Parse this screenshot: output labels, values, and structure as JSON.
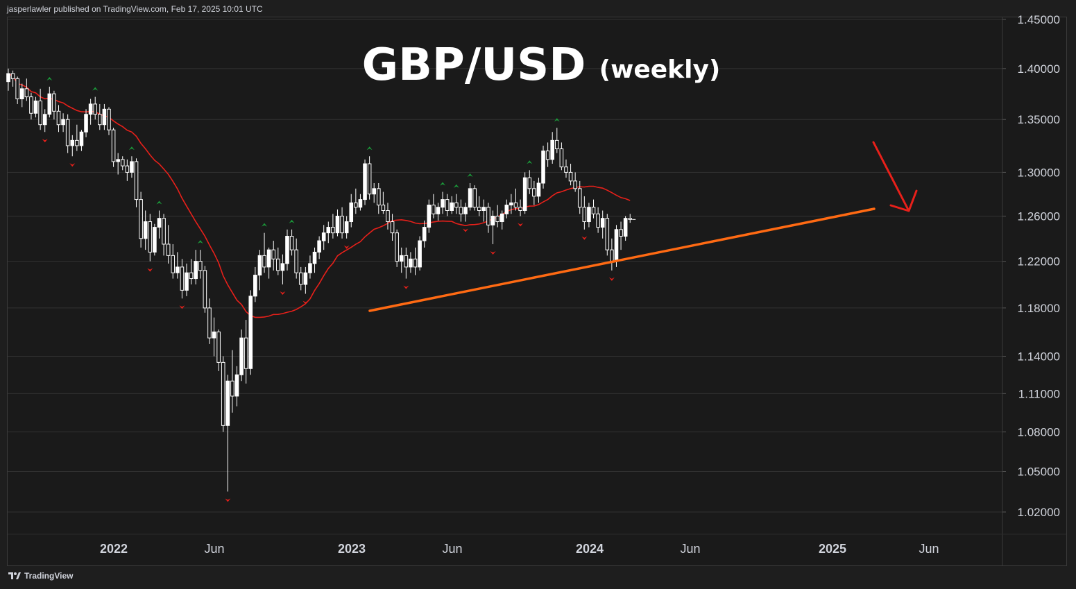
{
  "header": {
    "credit": "jasperlawler published on TradingView.com, Feb 17, 2025 10:01 UTC"
  },
  "footer": {
    "brand": "TradingView"
  },
  "annotation": {
    "title": "GBP/USD",
    "subtitle": "(weekly)",
    "trendline_color": "#ff6a13",
    "arrow_color": "#e8201a"
  },
  "colors": {
    "background": "#1a1a1a",
    "grid": "#333333",
    "candle_up": "#ffffff",
    "candle_down": "#ffffff",
    "moving_average": "#e8201a",
    "swing_high_marker": "#1a9c3a",
    "swing_low_marker": "#e8201a",
    "axis_text": "#d1d4dc"
  },
  "chart_data": {
    "type": "candlestick",
    "symbol": "GBP/USD",
    "timeframe": "weekly",
    "y_axis": {
      "ticks": [
        "1.45000",
        "1.40000",
        "1.35000",
        "1.30000",
        "1.26000",
        "1.22000",
        "1.18000",
        "1.14000",
        "1.11000",
        "1.08000",
        "1.05000",
        "1.02000"
      ],
      "range": [
        1.0,
        1.45
      ],
      "scale": "log"
    },
    "x_axis": {
      "ticks": [
        "2022",
        "Jun",
        "2023",
        "Jun",
        "2024",
        "Jun",
        "2025",
        "Jun"
      ]
    },
    "ohlc": [
      [
        1.387,
        1.4,
        1.378,
        1.395
      ],
      [
        1.395,
        1.398,
        1.382,
        1.39
      ],
      [
        1.39,
        1.392,
        1.365,
        1.37
      ],
      [
        1.37,
        1.385,
        1.362,
        1.38
      ],
      [
        1.38,
        1.39,
        1.368,
        1.372
      ],
      [
        1.372,
        1.376,
        1.35,
        1.356
      ],
      [
        1.356,
        1.372,
        1.352,
        1.368
      ],
      [
        1.368,
        1.38,
        1.34,
        1.345
      ],
      [
        1.345,
        1.36,
        1.338,
        1.355
      ],
      [
        1.355,
        1.382,
        1.352,
        1.375
      ],
      [
        1.375,
        1.378,
        1.35,
        1.358
      ],
      [
        1.358,
        1.364,
        1.338,
        1.345
      ],
      [
        1.345,
        1.356,
        1.338,
        1.35
      ],
      [
        1.35,
        1.355,
        1.318,
        1.325
      ],
      [
        1.325,
        1.335,
        1.315,
        1.33
      ],
      [
        1.33,
        1.345,
        1.32,
        1.325
      ],
      [
        1.325,
        1.34,
        1.32,
        1.338
      ],
      [
        1.338,
        1.36,
        1.333,
        1.355
      ],
      [
        1.355,
        1.37,
        1.345,
        1.365
      ],
      [
        1.365,
        1.372,
        1.35,
        1.355
      ],
      [
        1.355,
        1.365,
        1.34,
        1.345
      ],
      [
        1.345,
        1.365,
        1.34,
        1.36
      ],
      [
        1.36,
        1.362,
        1.335,
        1.34
      ],
      [
        1.34,
        1.342,
        1.305,
        1.31
      ],
      [
        1.31,
        1.318,
        1.298,
        1.312
      ],
      [
        1.312,
        1.315,
        1.302,
        1.306
      ],
      [
        1.306,
        1.312,
        1.292,
        1.3
      ],
      [
        1.3,
        1.315,
        1.295,
        1.31
      ],
      [
        1.31,
        1.313,
        1.268,
        1.275
      ],
      [
        1.275,
        1.282,
        1.232,
        1.24
      ],
      [
        1.24,
        1.265,
        1.23,
        1.255
      ],
      [
        1.255,
        1.262,
        1.22,
        1.228
      ],
      [
        1.228,
        1.253,
        1.225,
        1.25
      ],
      [
        1.25,
        1.265,
        1.24,
        1.258
      ],
      [
        1.258,
        1.262,
        1.225,
        1.235
      ],
      [
        1.235,
        1.252,
        1.218,
        1.225
      ],
      [
        1.225,
        1.235,
        1.205,
        1.21
      ],
      [
        1.21,
        1.228,
        1.205,
        1.215
      ],
      [
        1.215,
        1.222,
        1.188,
        1.195
      ],
      [
        1.195,
        1.218,
        1.19,
        1.21
      ],
      [
        1.21,
        1.222,
        1.2,
        1.205
      ],
      [
        1.205,
        1.23,
        1.2,
        1.22
      ],
      [
        1.22,
        1.23,
        1.205,
        1.212
      ],
      [
        1.212,
        1.216,
        1.176,
        1.18
      ],
      [
        1.18,
        1.188,
        1.15,
        1.155
      ],
      [
        1.155,
        1.172,
        1.14,
        1.16
      ],
      [
        1.16,
        1.162,
        1.128,
        1.135
      ],
      [
        1.135,
        1.14,
        1.08,
        1.085
      ],
      [
        1.085,
        1.125,
        1.035,
        1.12
      ],
      [
        1.12,
        1.145,
        1.095,
        1.108
      ],
      [
        1.108,
        1.132,
        1.1,
        1.125
      ],
      [
        1.125,
        1.162,
        1.12,
        1.155
      ],
      [
        1.155,
        1.17,
        1.118,
        1.13
      ],
      [
        1.13,
        1.195,
        1.125,
        1.19
      ],
      [
        1.19,
        1.215,
        1.185,
        1.208
      ],
      [
        1.208,
        1.23,
        1.195,
        1.225
      ],
      [
        1.225,
        1.245,
        1.21,
        1.215
      ],
      [
        1.215,
        1.232,
        1.205,
        1.23
      ],
      [
        1.23,
        1.238,
        1.212,
        1.222
      ],
      [
        1.222,
        1.232,
        1.208,
        1.212
      ],
      [
        1.212,
        1.226,
        1.2,
        1.218
      ],
      [
        1.218,
        1.248,
        1.212,
        1.242
      ],
      [
        1.242,
        1.248,
        1.225,
        1.23
      ],
      [
        1.23,
        1.24,
        1.205,
        1.21
      ],
      [
        1.21,
        1.215,
        1.195,
        1.2
      ],
      [
        1.2,
        1.215,
        1.192,
        1.21
      ],
      [
        1.21,
        1.225,
        1.205,
        1.218
      ],
      [
        1.218,
        1.232,
        1.21,
        1.228
      ],
      [
        1.228,
        1.242,
        1.222,
        1.238
      ],
      [
        1.238,
        1.252,
        1.23,
        1.245
      ],
      [
        1.245,
        1.255,
        1.236,
        1.25
      ],
      [
        1.25,
        1.262,
        1.24,
        1.245
      ],
      [
        1.245,
        1.266,
        1.242,
        1.26
      ],
      [
        1.26,
        1.268,
        1.24,
        1.245
      ],
      [
        1.245,
        1.26,
        1.24,
        1.255
      ],
      [
        1.255,
        1.28,
        1.25,
        1.272
      ],
      [
        1.272,
        1.285,
        1.262,
        1.268
      ],
      [
        1.268,
        1.28,
        1.265,
        1.275
      ],
      [
        1.275,
        1.312,
        1.27,
        1.308
      ],
      [
        1.308,
        1.315,
        1.275,
        1.28
      ],
      [
        1.28,
        1.29,
        1.272,
        1.285
      ],
      [
        1.285,
        1.29,
        1.262,
        1.27
      ],
      [
        1.27,
        1.282,
        1.262,
        1.265
      ],
      [
        1.265,
        1.272,
        1.248,
        1.255
      ],
      [
        1.255,
        1.262,
        1.238,
        1.245
      ],
      [
        1.245,
        1.248,
        1.215,
        1.22
      ],
      [
        1.22,
        1.232,
        1.21,
        1.225
      ],
      [
        1.225,
        1.232,
        1.205,
        1.215
      ],
      [
        1.215,
        1.228,
        1.21,
        1.222
      ],
      [
        1.222,
        1.232,
        1.208,
        1.215
      ],
      [
        1.215,
        1.242,
        1.212,
        1.238
      ],
      [
        1.238,
        1.256,
        1.232,
        1.25
      ],
      [
        1.25,
        1.275,
        1.245,
        1.27
      ],
      [
        1.27,
        1.28,
        1.258,
        1.262
      ],
      [
        1.262,
        1.272,
        1.256,
        1.268
      ],
      [
        1.268,
        1.282,
        1.262,
        1.275
      ],
      [
        1.275,
        1.28,
        1.26,
        1.265
      ],
      [
        1.265,
        1.278,
        1.262,
        1.272
      ],
      [
        1.272,
        1.28,
        1.262,
        1.268
      ],
      [
        1.268,
        1.275,
        1.255,
        1.262
      ],
      [
        1.262,
        1.272,
        1.255,
        1.268
      ],
      [
        1.268,
        1.29,
        1.265,
        1.285
      ],
      [
        1.285,
        1.288,
        1.265,
        1.268
      ],
      [
        1.268,
        1.278,
        1.26,
        1.265
      ],
      [
        1.265,
        1.275,
        1.255,
        1.268
      ],
      [
        1.268,
        1.272,
        1.245,
        1.252
      ],
      [
        1.252,
        1.265,
        1.235,
        1.26
      ],
      [
        1.26,
        1.27,
        1.25,
        1.255
      ],
      [
        1.255,
        1.265,
        1.248,
        1.262
      ],
      [
        1.262,
        1.275,
        1.258,
        1.27
      ],
      [
        1.27,
        1.28,
        1.262,
        1.272
      ],
      [
        1.272,
        1.285,
        1.265,
        1.268
      ],
      [
        1.268,
        1.275,
        1.26,
        1.265
      ],
      [
        1.265,
        1.3,
        1.262,
        1.295
      ],
      [
        1.295,
        1.302,
        1.28,
        1.285
      ],
      [
        1.285,
        1.292,
        1.27,
        1.278
      ],
      [
        1.278,
        1.295,
        1.272,
        1.29
      ],
      [
        1.29,
        1.325,
        1.285,
        1.32
      ],
      [
        1.32,
        1.328,
        1.305,
        1.312
      ],
      [
        1.312,
        1.338,
        1.308,
        1.33
      ],
      [
        1.33,
        1.342,
        1.318,
        1.322
      ],
      [
        1.322,
        1.328,
        1.302,
        1.305
      ],
      [
        1.305,
        1.312,
        1.295,
        1.3
      ],
      [
        1.3,
        1.308,
        1.288,
        1.292
      ],
      [
        1.292,
        1.3,
        1.282,
        1.285
      ],
      [
        1.285,
        1.292,
        1.262,
        1.268
      ],
      [
        1.268,
        1.278,
        1.248,
        1.255
      ],
      [
        1.255,
        1.272,
        1.25,
        1.268
      ],
      [
        1.268,
        1.275,
        1.258,
        1.262
      ],
      [
        1.262,
        1.268,
        1.245,
        1.25
      ],
      [
        1.25,
        1.265,
        1.24,
        1.258
      ],
      [
        1.258,
        1.262,
        1.225,
        1.23
      ],
      [
        1.23,
        1.24,
        1.212,
        1.22
      ],
      [
        1.22,
        1.252,
        1.215,
        1.248
      ],
      [
        1.248,
        1.255,
        1.23,
        1.242
      ],
      [
        1.242,
        1.26,
        1.238,
        1.258
      ],
      [
        1.258,
        1.262,
        1.254,
        1.257
      ]
    ]
  }
}
